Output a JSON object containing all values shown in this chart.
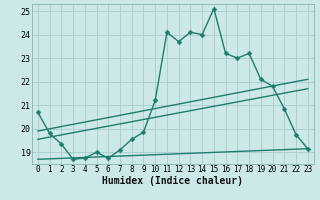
{
  "title": "",
  "xlabel": "Humidex (Indice chaleur)",
  "ylabel": "",
  "bg_color": "#cce8e8",
  "grid_color": "#aacccc",
  "line_color": "#1e7d6e",
  "xlim": [
    -0.5,
    23.5
  ],
  "ylim": [
    18.5,
    25.3
  ],
  "yticks": [
    19,
    20,
    21,
    22,
    23,
    24,
    25
  ],
  "xticks": [
    0,
    1,
    2,
    3,
    4,
    5,
    6,
    7,
    8,
    9,
    10,
    11,
    12,
    13,
    14,
    15,
    16,
    17,
    18,
    19,
    20,
    21,
    22,
    23
  ],
  "main_x": [
    0,
    1,
    2,
    3,
    4,
    5,
    6,
    7,
    8,
    9,
    10,
    11,
    12,
    13,
    14,
    15,
    16,
    17,
    18,
    19,
    20,
    21,
    22,
    23
  ],
  "main_y": [
    20.7,
    19.8,
    19.35,
    18.7,
    18.75,
    19.0,
    18.75,
    19.1,
    19.55,
    19.85,
    21.2,
    24.1,
    23.7,
    24.1,
    24.0,
    25.1,
    23.2,
    23.0,
    23.2,
    22.1,
    21.8,
    20.85,
    19.75,
    19.15
  ],
  "trend1_x": [
    0,
    23
  ],
  "trend1_y": [
    19.9,
    22.1
  ],
  "trend2_x": [
    0,
    23
  ],
  "trend2_y": [
    19.55,
    21.7
  ],
  "trend3_x": [
    0,
    23
  ],
  "trend3_y": [
    18.7,
    19.15
  ],
  "marker_size": 2.5,
  "linewidth": 1.0,
  "xlabel_fontsize": 7,
  "tick_fontsize": 5.5
}
